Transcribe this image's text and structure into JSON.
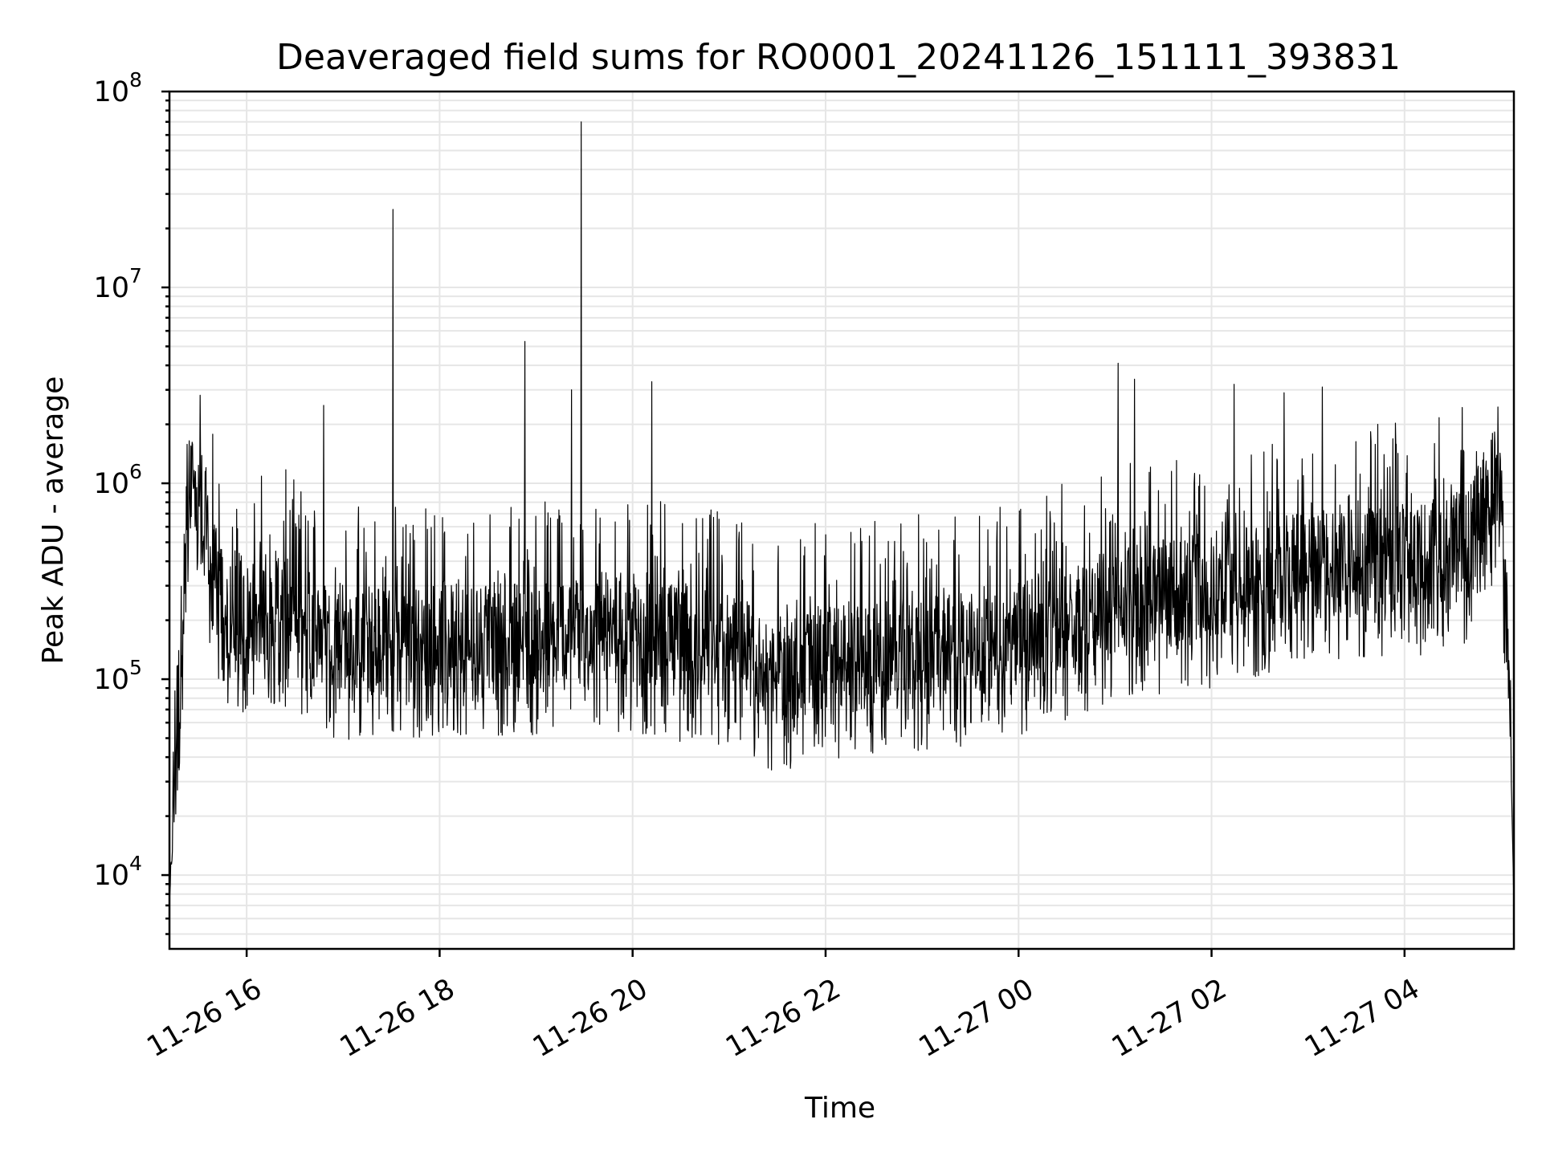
{
  "chart_data": {
    "type": "line",
    "title": "Deaveraged field sums for RO0001_20241126_151111_393831",
    "xlabel": "Time",
    "ylabel": "Peak ADU - average",
    "yscale": "log",
    "ylim": [
      4200,
      100000000
    ],
    "xlim": [
      "2024-11-26 15:12",
      "2024-11-27 05:08"
    ],
    "grid": true,
    "grid_minor": true,
    "x_ticks": [
      "11-26 16",
      "11-26 18",
      "11-26 20",
      "11-26 22",
      "11-27 00",
      "11-27 02",
      "11-27 04"
    ],
    "x_tick_values": [
      "2024-11-26 16:00",
      "2024-11-26 18:00",
      "2024-11-26 20:00",
      "2024-11-26 22:00",
      "2024-11-27 00:00",
      "2024-11-27 02:00",
      "2024-11-27 04:00"
    ],
    "y_ticks": [
      {
        "base": "10",
        "exp": "4",
        "value": 10000
      },
      {
        "base": "10",
        "exp": "5",
        "value": 100000
      },
      {
        "base": "10",
        "exp": "6",
        "value": 1000000
      },
      {
        "base": "10",
        "exp": "7",
        "value": 10000000
      },
      {
        "base": "10",
        "exp": "8",
        "value": 100000000
      }
    ],
    "series": [
      {
        "color": "#000000",
        "trend": [
          [
            "2024-11-26 15:12",
            7000
          ],
          [
            "2024-11-26 15:14",
            20000
          ],
          [
            "2024-11-26 15:18",
            100000
          ],
          [
            "2024-11-26 15:22",
            500000
          ],
          [
            "2024-11-26 15:27",
            1200000
          ],
          [
            "2024-11-26 15:33",
            800000
          ],
          [
            "2024-11-26 15:40",
            350000
          ],
          [
            "2024-11-26 15:50",
            200000
          ],
          [
            "2024-11-26 16:20",
            250000
          ],
          [
            "2024-11-26 16:40",
            190000
          ],
          [
            "2024-11-26 17:00",
            160000
          ],
          [
            "2024-11-26 18:00",
            170000
          ],
          [
            "2024-11-26 19:00",
            170000
          ],
          [
            "2024-11-26 19:30",
            200000
          ],
          [
            "2024-11-26 20:00",
            170000
          ],
          [
            "2024-11-26 21:00",
            150000
          ],
          [
            "2024-11-26 21:30",
            110000
          ],
          [
            "2024-11-26 22:00",
            130000
          ],
          [
            "2024-11-26 23:00",
            140000
          ],
          [
            "2024-11-27 00:00",
            170000
          ],
          [
            "2024-11-27 01:00",
            250000
          ],
          [
            "2024-11-27 02:00",
            300000
          ],
          [
            "2024-11-27 03:00",
            380000
          ],
          [
            "2024-11-27 04:00",
            420000
          ],
          [
            "2024-11-27 04:40",
            500000
          ],
          [
            "2024-11-27 04:58",
            1200000
          ],
          [
            "2024-11-27 05:03",
            300000
          ],
          [
            "2024-11-27 05:06",
            50000
          ],
          [
            "2024-11-27 05:08",
            7000
          ]
        ],
        "peaks": [
          [
            "2024-11-26 16:48",
            2500000
          ],
          [
            "2024-11-26 17:31",
            25000000
          ],
          [
            "2024-11-26 18:53",
            5300000
          ],
          [
            "2024-11-26 19:22",
            3000000
          ],
          [
            "2024-11-26 19:28",
            70000000
          ],
          [
            "2024-11-26 20:12",
            3300000
          ],
          [
            "2024-11-27 01:02",
            4100000
          ],
          [
            "2024-11-27 01:12",
            3400000
          ],
          [
            "2024-11-27 02:14",
            3200000
          ],
          [
            "2024-11-27 02:45",
            2900000
          ],
          [
            "2024-11-27 03:09",
            3100000
          ]
        ],
        "noise_range_factor": [
          0.3,
          5
        ]
      }
    ]
  }
}
